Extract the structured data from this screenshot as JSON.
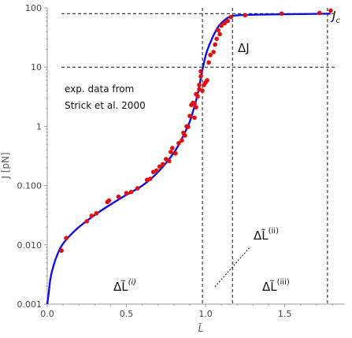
{
  "chart_data": {
    "type": "scatter",
    "title": "",
    "xlabel": "L̃",
    "ylabel": "J [pN]",
    "xscale": "linear",
    "yscale": "log",
    "xlim": [
      0,
      1.88
    ],
    "ylim": [
      0.001,
      100
    ],
    "grid": false,
    "x_ticks": [
      {
        "value": 0,
        "label": "0.0"
      },
      {
        "value": 0.5,
        "label": "0.5"
      },
      {
        "value": 1.0,
        "label": "1.0"
      },
      {
        "value": 1.5,
        "label": "1.5"
      }
    ],
    "y_ticks": [
      {
        "value": 0.001,
        "label": "0.001"
      },
      {
        "value": 0.01,
        "label": "0.010"
      },
      {
        "value": 0.1,
        "label": "0.100"
      },
      {
        "value": 1,
        "label": "1"
      },
      {
        "value": 10,
        "label": "10"
      },
      {
        "value": 100,
        "label": "100"
      }
    ],
    "colors": {
      "curve": "#1010e0",
      "points": "#e01010",
      "guides": "#111111"
    },
    "series": [
      {
        "type": "scatter",
        "points": [
          [
            0.09,
            0.008
          ],
          [
            0.12,
            0.013
          ],
          [
            0.25,
            0.025
          ],
          [
            0.28,
            0.031
          ],
          [
            0.31,
            0.034
          ],
          [
            0.38,
            0.053
          ],
          [
            0.39,
            0.056
          ],
          [
            0.45,
            0.065
          ],
          [
            0.5,
            0.075
          ],
          [
            0.53,
            0.078
          ],
          [
            0.57,
            0.09
          ],
          [
            0.63,
            0.125
          ],
          [
            0.65,
            0.13
          ],
          [
            0.67,
            0.17
          ],
          [
            0.69,
            0.18
          ],
          [
            0.71,
            0.21
          ],
          [
            0.73,
            0.23
          ],
          [
            0.75,
            0.28
          ],
          [
            0.77,
            0.26
          ],
          [
            0.78,
            0.37
          ],
          [
            0.79,
            0.43
          ],
          [
            0.81,
            0.35
          ],
          [
            0.83,
            0.52
          ],
          [
            0.85,
            0.58
          ],
          [
            0.86,
            0.78
          ],
          [
            0.87,
            0.7
          ],
          [
            0.88,
            1.0
          ],
          [
            0.89,
            0.98
          ],
          [
            0.9,
            1.5
          ],
          [
            0.91,
            2.3
          ],
          [
            0.92,
            2.5
          ],
          [
            0.93,
            2.4
          ],
          [
            0.93,
            1.4
          ],
          [
            0.94,
            3.5
          ],
          [
            0.94,
            2.1
          ],
          [
            0.95,
            3.2
          ],
          [
            0.96,
            4.2
          ],
          [
            0.96,
            5.0
          ],
          [
            0.97,
            7.0
          ],
          [
            0.97,
            8.5
          ],
          [
            0.98,
            4.0
          ],
          [
            0.99,
            5.0
          ],
          [
            1.0,
            5.5
          ],
          [
            1.01,
            6.0
          ],
          [
            1.02,
            12
          ],
          [
            1.03,
            16
          ],
          [
            1.05,
            18
          ],
          [
            1.06,
            24
          ],
          [
            1.07,
            30
          ],
          [
            1.08,
            42
          ],
          [
            1.09,
            36
          ],
          [
            1.1,
            50
          ],
          [
            1.12,
            55
          ],
          [
            1.14,
            60
          ],
          [
            1.16,
            70
          ],
          [
            1.25,
            75
          ],
          [
            1.48,
            80
          ],
          [
            1.72,
            82
          ],
          [
            1.79,
            90
          ]
        ]
      },
      {
        "type": "line",
        "points": [
          [
            0.0,
            0.001
          ],
          [
            0.01,
            0.0016
          ],
          [
            0.02,
            0.0027
          ],
          [
            0.04,
            0.0045
          ],
          [
            0.07,
            0.0075
          ],
          [
            0.1,
            0.0105
          ],
          [
            0.15,
            0.015
          ],
          [
            0.2,
            0.02
          ],
          [
            0.3,
            0.032
          ],
          [
            0.4,
            0.048
          ],
          [
            0.5,
            0.07
          ],
          [
            0.6,
            0.1
          ],
          [
            0.7,
            0.17
          ],
          [
            0.8,
            0.36
          ],
          [
            0.85,
            0.62
          ],
          [
            0.9,
            1.2
          ],
          [
            0.93,
            2.2
          ],
          [
            0.95,
            3.5
          ],
          [
            0.97,
            6.5
          ],
          [
            0.99,
            12
          ],
          [
            1.01,
            19
          ],
          [
            1.04,
            30
          ],
          [
            1.08,
            48
          ],
          [
            1.12,
            62
          ],
          [
            1.16,
            72
          ],
          [
            1.25,
            76
          ],
          [
            1.5,
            78
          ],
          [
            1.79,
            80
          ]
        ]
      }
    ],
    "guide_lines": [
      {
        "orient": "vertical",
        "value": 0.98
      },
      {
        "orient": "vertical",
        "value": 1.17
      },
      {
        "orient": "vertical",
        "value": 1.77
      },
      {
        "orient": "horizontal",
        "value": 80
      },
      {
        "orient": "horizontal",
        "value": 10
      }
    ],
    "annotations": {
      "note_line1": "exp. data from",
      "note_line2": "Strick et al. 2000",
      "jc": "J",
      "jc_sub": "c",
      "delta_j": "ΔJ",
      "delta_l1": "ΔL̃",
      "delta_l1_sup": "(i)",
      "delta_l2": "ΔL̃",
      "delta_l2_sup": "(ii)",
      "delta_l3": "ΔL̃",
      "delta_l3_sup": "(iii)"
    }
  }
}
